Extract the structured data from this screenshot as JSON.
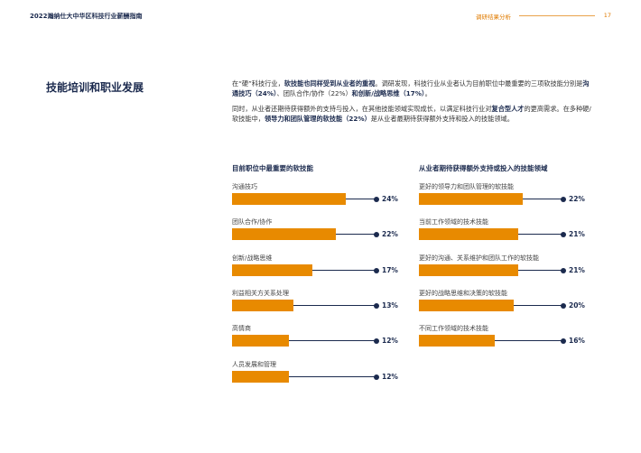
{
  "header": {
    "title": "2022瀚纳仕大中华区科技行业薪酬指南",
    "section": "调研结果分析",
    "page": "17"
  },
  "section_title": "技能培训和职业发展",
  "intro": {
    "p1": [
      {
        "t": "在“硬”科技行业，",
        "b": false
      },
      {
        "t": "软技能也同样受到从业者的重视",
        "b": true
      },
      {
        "t": "。调研发现，科技行业从业者认为目前职位中最重要的三项软技能分别是",
        "b": false
      },
      {
        "t": "沟通技巧（24%）",
        "b": true
      },
      {
        "t": "、团队合作/协作（22%）",
        "b": false
      },
      {
        "t": "和创新/战略思维（17%）",
        "b": true
      },
      {
        "t": "。",
        "b": false
      }
    ],
    "p2": [
      {
        "t": "同时，从业者还期待获得额外的支持与投入，在其他技能领域实现成长，以满足科技行业对",
        "b": false
      },
      {
        "t": "复合型人才",
        "b": true
      },
      {
        "t": "的更高需求。在多种硬/软技能中，",
        "b": false
      },
      {
        "t": "领导力和团队管理的软技能（22%）",
        "b": true
      },
      {
        "t": "是从业者最期待获得额外支持和投入的技能领域。",
        "b": false
      }
    ]
  },
  "chart_data": [
    {
      "type": "bar",
      "title": "目前职位中最重要的软技能",
      "categories": [
        "沟通技巧",
        "团队合作/协作",
        "创新/战略思维",
        "利益相关方关系处理",
        "高情商",
        "人员发展和管理"
      ],
      "values": [
        24,
        22,
        17,
        13,
        12,
        12
      ],
      "labels": [
        "24%",
        "22%",
        "17%",
        "13%",
        "12%",
        "12%"
      ],
      "color": "#e88a00"
    },
    {
      "type": "bar",
      "title": "从业者期待获得额外支持或投入的技能领域",
      "categories": [
        "更好的领导力和团队管理的软技能",
        "当前工作领域的技术技能",
        "更好的沟通、关系维护和团队工作的软技能",
        "更好的战略思维和决策的软技能",
        "不同工作领域的技术技能"
      ],
      "values": [
        22,
        21,
        21,
        20,
        16
      ],
      "labels": [
        "22%",
        "21%",
        "21%",
        "20%",
        "16%"
      ],
      "color": "#e88a00"
    }
  ]
}
